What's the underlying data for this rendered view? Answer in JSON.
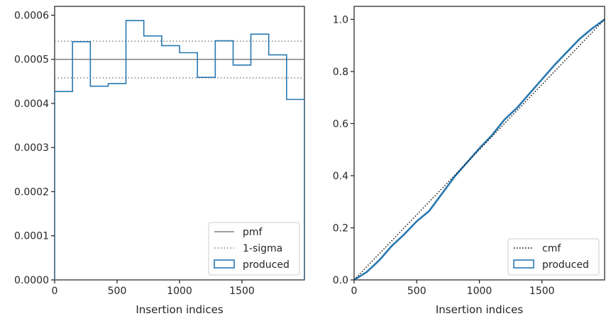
{
  "colors": {
    "produced": "#2878b0",
    "pmf": "#808080",
    "sigma": "#808080",
    "cmf": "#000000",
    "axes": "#262626"
  },
  "chart_data": [
    {
      "type": "line",
      "subtype": "step-histogram",
      "xlabel": "Insertion indices",
      "ylabel": "",
      "xlim": [
        0,
        2000
      ],
      "ylim": [
        0,
        0.00062
      ],
      "xticks": [
        0,
        500,
        1000,
        1500
      ],
      "xtick_labels": [
        "0",
        "500",
        "1000",
        "1500"
      ],
      "yticks": [
        0,
        0.0001,
        0.0002,
        0.0003,
        0.0004,
        0.0005,
        0.0006
      ],
      "ytick_labels": [
        "0.0000",
        "0.0001",
        "0.0002",
        "0.0003",
        "0.0004",
        "0.0005",
        "0.0006"
      ],
      "legend_position": "lower-right",
      "pmf": 0.0005,
      "sigma_upper": 0.000541,
      "sigma_lower": 0.000458,
      "bin_edges": [
        0,
        143,
        286,
        429,
        571,
        714,
        857,
        1000,
        1143,
        1286,
        1429,
        1571,
        1714,
        1857,
        2000
      ],
      "values": [
        0.000427,
        0.00054,
        0.000439,
        0.000445,
        0.000588,
        0.000553,
        0.000531,
        0.000515,
        0.000459,
        0.000542,
        0.000487,
        0.000557,
        0.00051,
        0.000409
      ],
      "legend": [
        "pmf",
        "1-sigma",
        "produced"
      ]
    },
    {
      "type": "line",
      "subtype": "cumulative",
      "xlabel": "Insertion indices",
      "ylabel": "",
      "xlim": [
        0,
        2000
      ],
      "ylim": [
        0,
        1.05
      ],
      "xticks": [
        0,
        500,
        1000,
        1500
      ],
      "xtick_labels": [
        "0",
        "500",
        "1000",
        "1500"
      ],
      "yticks": [
        0,
        0.2,
        0.4,
        0.6,
        0.8,
        1.0
      ],
      "ytick_labels": [
        "0.0",
        "0.2",
        "0.4",
        "0.6",
        "0.8",
        "1.0"
      ],
      "legend_position": "lower-right",
      "cmf": {
        "x": [
          0,
          2000
        ],
        "y": [
          0,
          1
        ]
      },
      "produced": {
        "x": [
          0,
          100,
          200,
          300,
          400,
          500,
          600,
          700,
          800,
          900,
          1000,
          1100,
          1200,
          1300,
          1400,
          1500,
          1600,
          1700,
          1800,
          1900,
          2000
        ],
        "y": [
          0,
          0.03,
          0.075,
          0.13,
          0.175,
          0.225,
          0.265,
          0.33,
          0.395,
          0.45,
          0.505,
          0.555,
          0.615,
          0.66,
          0.715,
          0.77,
          0.825,
          0.875,
          0.925,
          0.965,
          1.0
        ]
      },
      "legend": [
        "cmf",
        "produced"
      ]
    }
  ]
}
